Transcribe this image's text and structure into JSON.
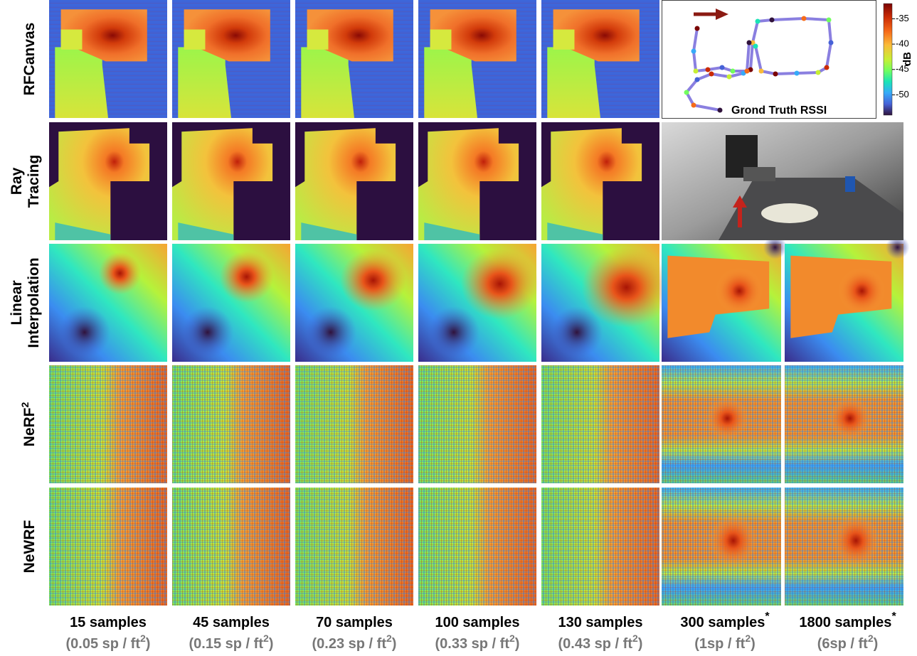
{
  "row_labels": [
    {
      "lines": [
        "RFCanvas"
      ]
    },
    {
      "lines": [
        "Ray",
        "Tracing"
      ]
    },
    {
      "lines": [
        "Linear",
        "Interpolation"
      ]
    },
    {
      "lines": [
        "NeRF"
      ],
      "sup": "2"
    },
    {
      "lines": [
        "NeWRF"
      ]
    }
  ],
  "columns": [
    {
      "samples": "15 samples",
      "density": "(0.05 sp / ft",
      "density_sup": "2",
      "density_end": ")"
    },
    {
      "samples": "45 samples",
      "density": "(0.15 sp / ft",
      "density_sup": "2",
      "density_end": ")"
    },
    {
      "samples": "70 samples",
      "density": "(0.23 sp / ft",
      "density_sup": "2",
      "density_end": ")"
    },
    {
      "samples": "100 samples",
      "density": "(0.33 sp / ft",
      "density_sup": "2",
      "density_end": ")"
    },
    {
      "samples": "130 samples",
      "density": "(0.43 sp / ft",
      "density_sup": "2",
      "density_end": ")"
    },
    {
      "samples": "300 samples",
      "samples_sup": "*",
      "density": "(1sp / ft",
      "density_sup": "2",
      "density_end": ")"
    },
    {
      "samples": "1800 samples",
      "samples_sup": "*",
      "density": "(6sp / ft",
      "density_sup": "2",
      "density_end": ")"
    }
  ],
  "legend_panel": {
    "label": "Grond Truth RSSI"
  },
  "colorbar": {
    "label": "dB",
    "range": [
      -54,
      -32
    ],
    "ticks": [
      -35,
      -40,
      -45,
      -50
    ]
  }
}
